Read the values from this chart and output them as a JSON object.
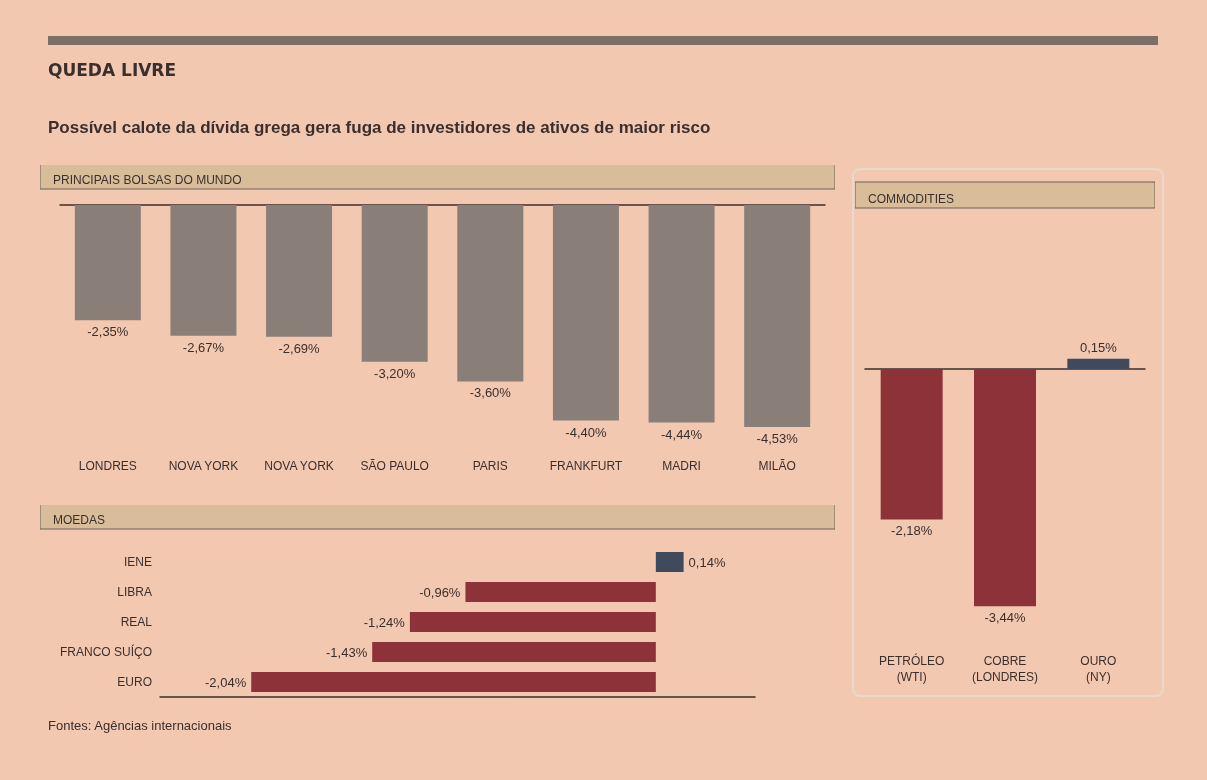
{
  "chart_data": [
    {
      "type": "other",
      "title": "QUEDA LIVRE",
      "subtitle": "Possível calote da dívida grega gera fuga de investidores de ativos de maior risco",
      "annotations": [
        "Fontes: Agências internacionais"
      ]
    },
    {
      "type": "bar",
      "title": "PRINCIPAIS BOLSAS DO MUNDO",
      "categories": [
        "LONDRES",
        "NOVA YORK",
        "NOVA YORK",
        "SÃO PAULO",
        "PARIS",
        "FRANKFURT",
        "MADRI",
        "MILÃO"
      ],
      "values": [
        -2.35,
        -2.67,
        -2.69,
        -3.2,
        -3.6,
        -4.4,
        -4.44,
        -4.53
      ],
      "color": "#8a7e78",
      "value_labels": [
        "-2,35%",
        "-2,67%",
        "-2,69%",
        "-3,20%",
        "-3,60%",
        "-4,40%",
        "-4,44%",
        "-4,53%"
      ]
    },
    {
      "type": "bar",
      "orientation": "horizontal",
      "title": "MOEDAS",
      "categories": [
        "IENE",
        "LIBRA",
        "REAL",
        "FRANCO SUÍÇO",
        "EURO"
      ],
      "values": [
        0.14,
        -0.96,
        -1.24,
        -1.43,
        -2.04
      ],
      "colors": [
        "#3f4a5c",
        "#8c3238",
        "#8c3238",
        "#8c3238",
        "#8c3238"
      ],
      "value_labels": [
        "0,14%",
        "-0,96%",
        "-1,24%",
        "-1,43%",
        "-2,04%"
      ]
    },
    {
      "type": "bar",
      "title": "COMMODITIES",
      "categories": [
        "PETRÓLEO\n(WTI)",
        "COBRE\n(LONDRES)",
        "OURO\n(NY)"
      ],
      "values": [
        -2.18,
        -3.44,
        0.15
      ],
      "colors": [
        "#8c3238",
        "#8c3238",
        "#3f4a5c"
      ],
      "value_labels": [
        "-2,18%",
        "-3,44%",
        "0,15%"
      ]
    }
  ]
}
